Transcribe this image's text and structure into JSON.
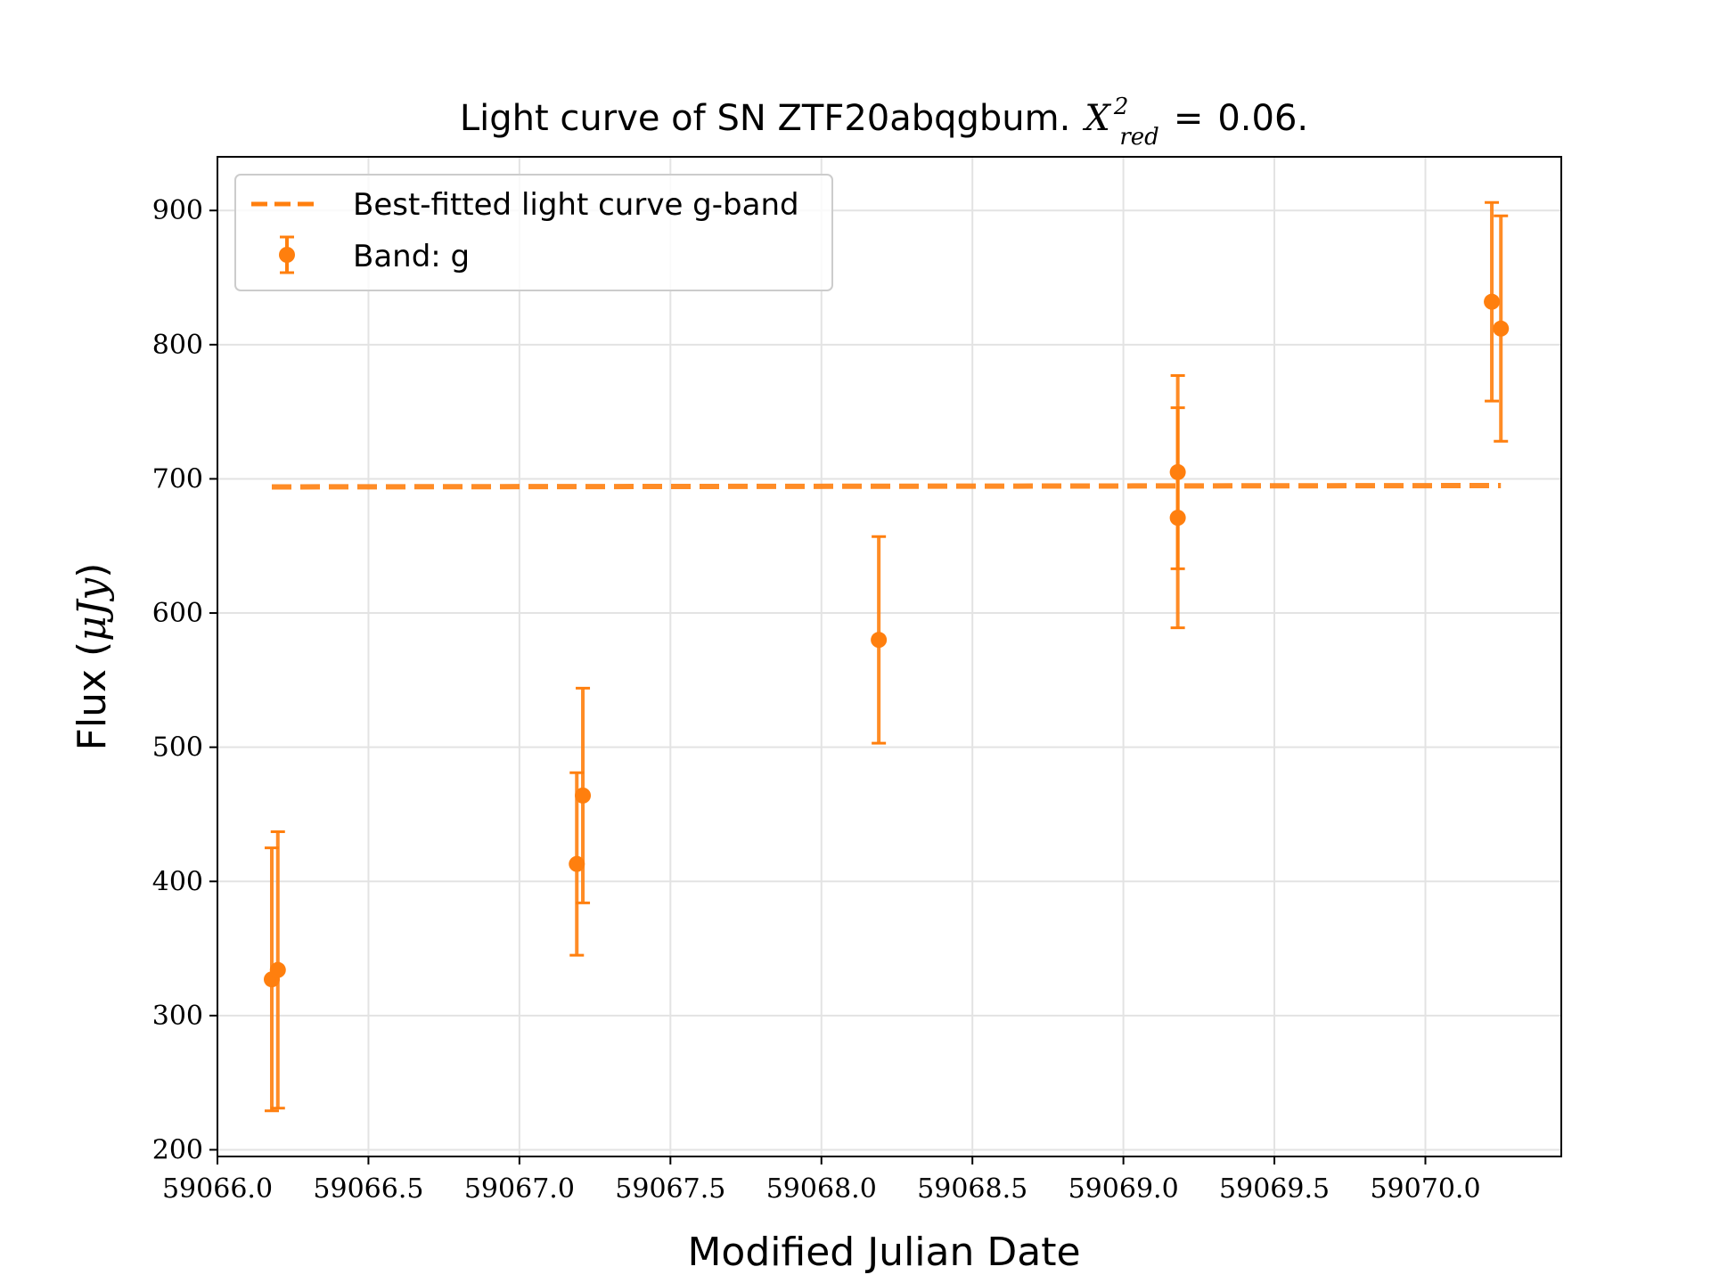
{
  "chart_data": {
    "type": "scatter",
    "title": {
      "prefix": "Light curve of SN ZTF20abqgbum.",
      "chi_symbol": "X",
      "chi_superscript": "2",
      "chi_subscript": "red",
      "equals": "=",
      "value": "0.06."
    },
    "xlabel": "Modified Julian Date",
    "ylabel": {
      "prefix": "Flux (",
      "unit": "μJy",
      "suffix": ")"
    },
    "xlim": [
      59066.0,
      59070.45
    ],
    "ylim": [
      195,
      940
    ],
    "xticks": [
      59066.0,
      59066.5,
      59067.0,
      59067.5,
      59068.0,
      59068.5,
      59069.0,
      59069.5,
      59070.0
    ],
    "xtick_labels": [
      "59066.0",
      "59066.5",
      "59067.0",
      "59067.5",
      "59068.0",
      "59068.5",
      "59069.0",
      "59069.5",
      "59070.0"
    ],
    "yticks": [
      200,
      300,
      400,
      500,
      600,
      700,
      800,
      900
    ],
    "ytick_labels": [
      "200",
      "300",
      "400",
      "500",
      "600",
      "700",
      "800",
      "900"
    ],
    "grid": true,
    "legend_position": "top-left",
    "color": "#ff7f0e",
    "series": [
      {
        "name": "Best-fitted light curve g-band",
        "kind": "dashed-line",
        "x": [
          59066.18,
          59070.25
        ],
        "y": [
          694,
          695
        ]
      },
      {
        "name": "Band: g",
        "kind": "errorbar",
        "points": [
          {
            "x": 59066.18,
            "y": 327,
            "err": 98
          },
          {
            "x": 59066.2,
            "y": 334,
            "err": 103
          },
          {
            "x": 59067.19,
            "y": 413,
            "err": 68
          },
          {
            "x": 59067.21,
            "y": 464,
            "err": 80
          },
          {
            "x": 59068.19,
            "y": 580,
            "err": 77
          },
          {
            "x": 59069.18,
            "y": 705,
            "err": 72
          },
          {
            "x": 59069.18,
            "y": 671,
            "err": 82
          },
          {
            "x": 59070.22,
            "y": 832,
            "err": 74
          },
          {
            "x": 59070.25,
            "y": 812,
            "err": 84
          }
        ]
      }
    ]
  }
}
